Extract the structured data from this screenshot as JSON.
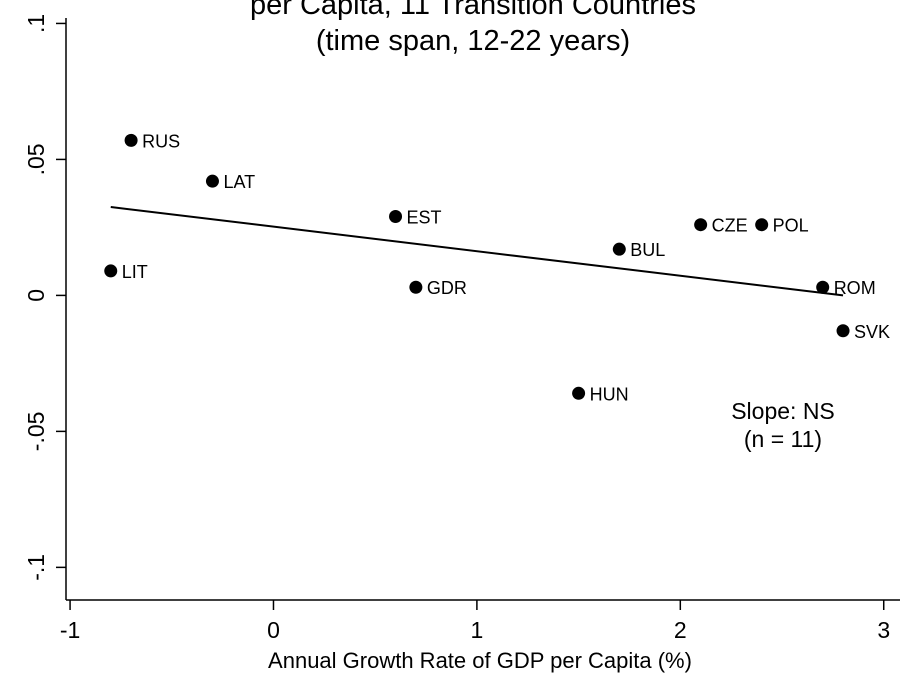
{
  "chart_data": {
    "type": "scatter",
    "title_lines": [
      "per Capita, 11 Transition Countries",
      "(time span, 12-22 years)"
    ],
    "xlabel": "Annual Growth Rate of GDP per Capita (%)",
    "ylabel": "",
    "xlim": [
      -1.02,
      3.08
    ],
    "ylim": [
      -0.112,
      0.102
    ],
    "x_ticks": [
      {
        "value": -1,
        "label": "-1"
      },
      {
        "value": 0,
        "label": "0"
      },
      {
        "value": 1,
        "label": "1"
      },
      {
        "value": 2,
        "label": "2"
      },
      {
        "value": 3,
        "label": "3"
      }
    ],
    "y_ticks": [
      {
        "value": -0.1,
        "label": "-.1"
      },
      {
        "value": -0.05,
        "label": "-.05"
      },
      {
        "value": 0,
        "label": "0"
      },
      {
        "value": 0.05,
        "label": ".05"
      },
      {
        "value": 0.1,
        "label": ".1"
      }
    ],
    "points": [
      {
        "label": "RUS",
        "x": -0.7,
        "y": 0.057
      },
      {
        "label": "LAT",
        "x": -0.3,
        "y": 0.042
      },
      {
        "label": "EST",
        "x": 0.6,
        "y": 0.029
      },
      {
        "label": "LIT",
        "x": -0.8,
        "y": 0.009
      },
      {
        "label": "GDR",
        "x": 0.7,
        "y": 0.003
      },
      {
        "label": "CZE",
        "x": 2.1,
        "y": 0.026
      },
      {
        "label": "POL",
        "x": 2.4,
        "y": 0.026
      },
      {
        "label": "BUL",
        "x": 1.7,
        "y": 0.017
      },
      {
        "label": "ROM",
        "x": 2.7,
        "y": 0.003
      },
      {
        "label": "SVK",
        "x": 2.8,
        "y": -0.013
      },
      {
        "label": "HUN",
        "x": 1.5,
        "y": -0.036
      }
    ],
    "fit_line": {
      "x1": -0.8,
      "y1": 0.0325,
      "x2": 2.8,
      "y2": 0.0
    },
    "annotation_lines": [
      "Slope: NS",
      "(n = 11)"
    ],
    "grid": false,
    "legend": "none",
    "marker_color": "#000000",
    "line_color": "#000000"
  }
}
